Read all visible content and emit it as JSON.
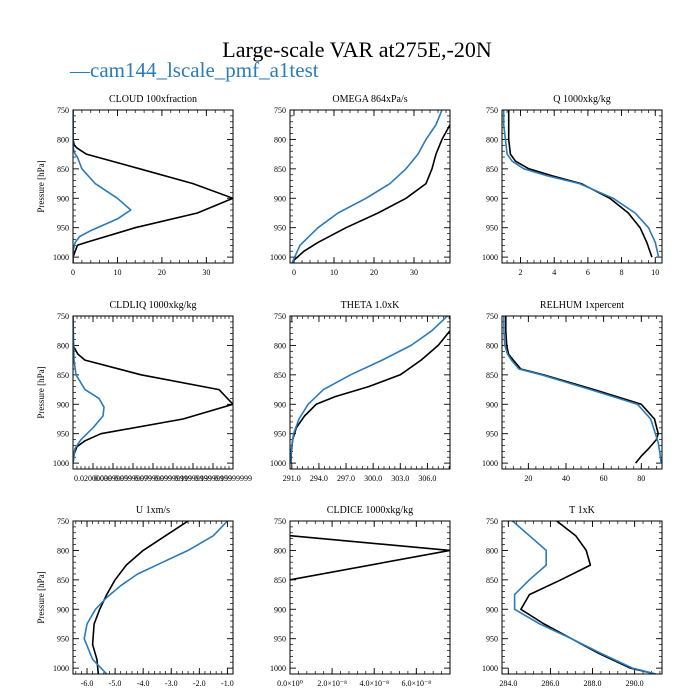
{
  "figure": {
    "title": "Large-scale VAR at275E,-20N",
    "legend_label": "cam144_lscale_pmf_a1test",
    "legend_symbol": "—"
  },
  "colors": {
    "series_a": "#000000",
    "series_b": "#2b7bb9"
  },
  "chart_data": [
    {
      "type": "line",
      "title": "CLOUD  100xfraction",
      "ylabel": "Pressure [hPa]",
      "xlim": [
        0,
        36
      ],
      "xticks": [
        0,
        10,
        20,
        30
      ],
      "ylim": [
        750,
        1010
      ],
      "yticks": [
        750,
        800,
        850,
        900,
        950,
        1000
      ],
      "series": [
        {
          "name": "black",
          "x": [
            0,
            0,
            0,
            0,
            0.3,
            1,
            3,
            15,
            27,
            36,
            28,
            14,
            3,
            1,
            0.5,
            0,
            0
          ],
          "y": [
            750,
            775,
            790,
            800,
            810,
            815,
            825,
            850,
            875,
            900,
            925,
            950,
            975,
            980,
            990,
            1000,
            1010
          ]
        },
        {
          "name": "blue",
          "x": [
            0,
            0,
            0,
            0.2,
            0.5,
            1,
            2,
            5,
            10,
            13,
            10,
            4,
            1.5,
            0.5,
            0,
            0
          ],
          "y": [
            750,
            800,
            810,
            820,
            825,
            830,
            850,
            875,
            900,
            920,
            935,
            955,
            965,
            975,
            990,
            1010
          ]
        }
      ]
    },
    {
      "type": "line",
      "title": "OMEGA  864xPa/s",
      "ylabel": "",
      "xlim": [
        -1,
        39
      ],
      "xticks": [
        0,
        10,
        20,
        30
      ],
      "ylim": [
        750,
        1010
      ],
      "yticks": [
        750,
        800,
        850,
        900,
        950,
        1000
      ],
      "series": [
        {
          "name": "black",
          "x": [
            39,
            37,
            35.5,
            34.5,
            33,
            28,
            21,
            13,
            6,
            2.5,
            0
          ],
          "y": [
            775,
            800,
            825,
            850,
            875,
            900,
            925,
            950,
            975,
            990,
            1005
          ]
        },
        {
          "name": "blue",
          "x": [
            37,
            35.5,
            33,
            31,
            28,
            24,
            18,
            11,
            6,
            1.5,
            -0.5
          ],
          "y": [
            750,
            775,
            800,
            825,
            850,
            875,
            900,
            925,
            950,
            980,
            1010
          ]
        }
      ]
    },
    {
      "type": "line",
      "title": "Q  1000xkg/kg",
      "ylabel": "",
      "xlim": [
        0.9,
        10.4
      ],
      "xticks": [
        2,
        4,
        6,
        8,
        10
      ],
      "ylim": [
        750,
        1010
      ],
      "yticks": [
        750,
        800,
        850,
        900,
        950,
        1000
      ],
      "series": [
        {
          "name": "black",
          "x": [
            1.3,
            1.3,
            1.3,
            1.4,
            1.7,
            2.5,
            3.9,
            5.6,
            7.3,
            8.4,
            9.1,
            9.5,
            9.8
          ],
          "y": [
            750,
            775,
            800,
            825,
            837,
            850,
            862,
            875,
            900,
            925,
            950,
            975,
            1000
          ]
        },
        {
          "name": "blue",
          "x": [
            1.0,
            1.0,
            1.1,
            1.2,
            1.5,
            2.2,
            3.6,
            5.5,
            7.5,
            8.8,
            9.6,
            10.0,
            10.2
          ],
          "y": [
            750,
            775,
            800,
            825,
            837,
            850,
            862,
            875,
            900,
            925,
            950,
            975,
            1000
          ]
        }
      ]
    },
    {
      "type": "line",
      "title": "CLDLIQ  1000xkg/kg",
      "ylabel": "Pressure [hPa]",
      "xlim": [
        0,
        0.16
      ],
      "xticks": [
        0.02,
        0.04,
        0.06,
        0.08,
        0.1,
        0.12,
        0.14,
        0.16
      ],
      "xtick_labels": [
        "0.02000000",
        "0.03999999",
        "0.05999999",
        "0.07999999",
        "0.09999999",
        "0.11999999",
        "0.13999999",
        "0.15999999"
      ],
      "ylim": [
        750,
        1010
      ],
      "yticks": [
        750,
        800,
        850,
        900,
        950,
        1000
      ],
      "series": [
        {
          "name": "black",
          "x": [
            0,
            0,
            0.005,
            0.012,
            0.068,
            0.146,
            0.16,
            0.11,
            0.028,
            0.012,
            0.004,
            0.001,
            0
          ],
          "y": [
            750,
            800,
            815,
            825,
            850,
            875,
            900,
            925,
            950,
            962,
            972,
            985,
            1000
          ]
        },
        {
          "name": "blue",
          "x": [
            0,
            0.001,
            0.003,
            0.012,
            0.026,
            0.031,
            0.03,
            0.02,
            0.008,
            0.002,
            0
          ],
          "y": [
            750,
            825,
            850,
            875,
            890,
            905,
            920,
            940,
            960,
            975,
            1000
          ]
        }
      ]
    },
    {
      "type": "line",
      "title": "THETA  1.0xK",
      "ylabel": "",
      "xlim": [
        290.8,
        308.5
      ],
      "xticks": [
        291.0,
        294.0,
        297.0,
        300.0,
        303.0,
        306.0
      ],
      "xtick_labels": [
        "291.0",
        "294.0",
        "297.0",
        "300.0",
        "303.0",
        "306.0"
      ],
      "ylim": [
        750,
        1010
      ],
      "yticks": [
        750,
        800,
        850,
        900,
        950,
        1000
      ],
      "series": [
        {
          "name": "black",
          "x": [
            308.5,
            307.2,
            305.3,
            303.0,
            299.5,
            295.8,
            293.7,
            292.4,
            291.5,
            291.1,
            290.95,
            290.9
          ],
          "y": [
            775,
            800,
            825,
            850,
            870,
            887,
            900,
            920,
            940,
            960,
            980,
            1000
          ]
        },
        {
          "name": "blue",
          "x": [
            308.2,
            306.5,
            304.2,
            301.0,
            297.5,
            294.5,
            292.8,
            291.8,
            291.2,
            290.95,
            290.85
          ],
          "y": [
            750,
            775,
            800,
            825,
            850,
            875,
            900,
            925,
            950,
            975,
            1000
          ]
        }
      ]
    },
    {
      "type": "line",
      "title": "RELHUM  1xpercent",
      "ylabel": "",
      "xlim": [
        6,
        91
      ],
      "xticks": [
        20,
        40,
        60,
        80
      ],
      "ylim": [
        750,
        1010
      ],
      "yticks": [
        750,
        800,
        850,
        900,
        950,
        1000
      ],
      "series": [
        {
          "name": "black",
          "x": [
            8,
            8,
            8.5,
            9.5,
            12,
            16,
            28,
            55,
            80,
            87,
            89,
            88,
            84,
            80,
            77
          ],
          "y": [
            750,
            775,
            800,
            815,
            825,
            840,
            850,
            875,
            900,
            925,
            950,
            960,
            975,
            988,
            1000
          ]
        },
        {
          "name": "blue",
          "x": [
            7,
            7,
            7.5,
            9,
            11,
            15,
            27,
            53,
            78,
            85,
            87.5,
            89,
            90,
            90.5
          ],
          "y": [
            750,
            775,
            800,
            815,
            825,
            840,
            850,
            875,
            900,
            925,
            950,
            965,
            985,
            1000
          ]
        }
      ]
    },
    {
      "type": "line",
      "title": "U  1xm/s",
      "ylabel": "Pressure [hPa]",
      "xlim": [
        -6.5,
        -0.8
      ],
      "xticks": [
        -6.0,
        -5.0,
        -4.0,
        -3.0,
        -2.0,
        -1.0
      ],
      "xtick_labels": [
        "-6.0",
        "-5.0",
        "-4.0",
        "-3.0",
        "-2.0",
        "-1.0"
      ],
      "ylim": [
        750,
        1010
      ],
      "yticks": [
        750,
        800,
        850,
        900,
        950,
        1000
      ],
      "series": [
        {
          "name": "black",
          "x": [
            -2.4,
            -3.2,
            -4.0,
            -4.6,
            -5.0,
            -5.3,
            -5.55,
            -5.75,
            -5.8,
            -5.65,
            -5.6
          ],
          "y": [
            750,
            775,
            800,
            825,
            850,
            875,
            900,
            925,
            960,
            985,
            1010
          ]
        },
        {
          "name": "blue",
          "x": [
            -1.0,
            -1.5,
            -2.4,
            -3.3,
            -4.2,
            -4.8,
            -5.3,
            -5.7,
            -6.0,
            -6.1,
            -5.8,
            -5.3
          ],
          "y": [
            750,
            775,
            800,
            820,
            840,
            860,
            880,
            900,
            925,
            950,
            985,
            1010
          ]
        }
      ]
    },
    {
      "type": "line",
      "title": "CLDICE  1000xkg/kg",
      "ylabel": "",
      "xlim": [
        0,
        7.6e-08
      ],
      "xticks": [
        0,
        2e-08,
        4e-08,
        6e-08
      ],
      "xtick_labels": [
        "0.0×10⁰",
        "2.0×10⁻⁸",
        "4.0×10⁻⁸",
        "6.0×10⁻⁸"
      ],
      "ylim": [
        750,
        1010
      ],
      "yticks": [
        750,
        800,
        850,
        900,
        950,
        1000
      ],
      "series": [
        {
          "name": "black",
          "x": [
            0,
            7.6e-08,
            0
          ],
          "y": [
            775,
            800,
            850
          ]
        }
      ]
    },
    {
      "type": "line",
      "title": "T  1xK",
      "ylabel": "",
      "xlim": [
        283.7,
        291.3
      ],
      "xticks": [
        284.0,
        286.0,
        288.0,
        290.0
      ],
      "xtick_labels": [
        "284.0",
        "286.0",
        "288.0",
        "290.0"
      ],
      "ylim": [
        750,
        1010
      ],
      "yticks": [
        750,
        800,
        850,
        900,
        950,
        1000
      ],
      "series": [
        {
          "name": "black",
          "x": [
            286.3,
            287.2,
            287.7,
            287.9,
            286.5,
            285.0,
            284.6,
            285.7,
            287.0,
            288.3,
            289.8,
            291.0
          ],
          "y": [
            750,
            775,
            800,
            825,
            850,
            875,
            900,
            925,
            950,
            975,
            1000,
            1010
          ]
        },
        {
          "name": "blue",
          "x": [
            284.2,
            285.0,
            285.8,
            285.8,
            285.0,
            284.3,
            284.3,
            285.5,
            287.0,
            288.4,
            289.9,
            291.0
          ],
          "y": [
            750,
            775,
            800,
            825,
            850,
            875,
            900,
            925,
            950,
            975,
            1000,
            1010
          ]
        }
      ]
    }
  ]
}
